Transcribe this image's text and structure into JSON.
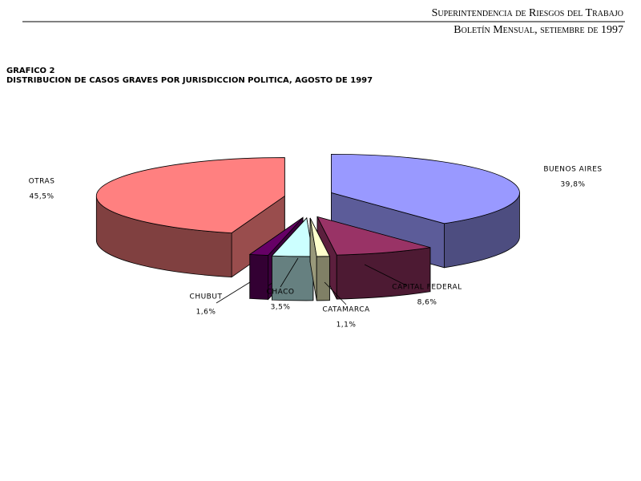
{
  "header": {
    "organization": "Superintendencia de Riesgos del Trabajo",
    "publication": "Boletín Mensual, setiembre de 1997"
  },
  "chart_data": {
    "type": "pie3d",
    "title": "GRAFICO 2",
    "subtitle": "DISTRIBUCION DE CASOS GRAVES POR JURISDICCION POLITICA, AGOSTO DE 1997",
    "categories": [
      "BUENOS AIRES",
      "CAPITAL FEDERAL",
      "CATAMARCA",
      "CHACO",
      "CHUBUT",
      "OTRAS"
    ],
    "values": [
      39.8,
      8.6,
      1.1,
      3.5,
      1.6,
      45.5
    ],
    "value_labels": [
      "39,8%",
      "8,6%",
      "1,1%",
      "3,5%",
      "1,6%",
      "45,5%"
    ],
    "colors": [
      "#9999ff",
      "#993366",
      "#ffffcc",
      "#ccffff",
      "#660066",
      "#ff8080"
    ]
  }
}
